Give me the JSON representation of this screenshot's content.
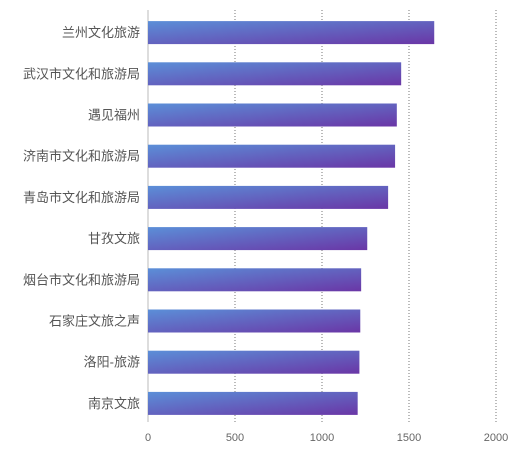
{
  "chart_data": {
    "type": "bar",
    "orientation": "horizontal",
    "categories": [
      "兰州文化旅游",
      "武汉市文化和旅游局",
      "遇见福州",
      "济南市文化和旅游局",
      "青岛市文化和旅游局",
      "甘孜文旅",
      "烟台市文化和旅游局",
      "石家庄文旅之声",
      "洛阳-旅游",
      "南京文旅"
    ],
    "values": [
      1645,
      1455,
      1430,
      1420,
      1380,
      1260,
      1225,
      1220,
      1215,
      1205
    ],
    "xlim": [
      0,
      2000
    ],
    "xticks": [
      "0",
      "500",
      "1000",
      "1500",
      "2000"
    ],
    "grid": "vertical dotted",
    "legend": "none",
    "colors": {
      "bar_start": "#5b8fd8",
      "bar_end": "#6a36a6",
      "grid": "#555555",
      "axis": "#bbbbbb"
    }
  }
}
